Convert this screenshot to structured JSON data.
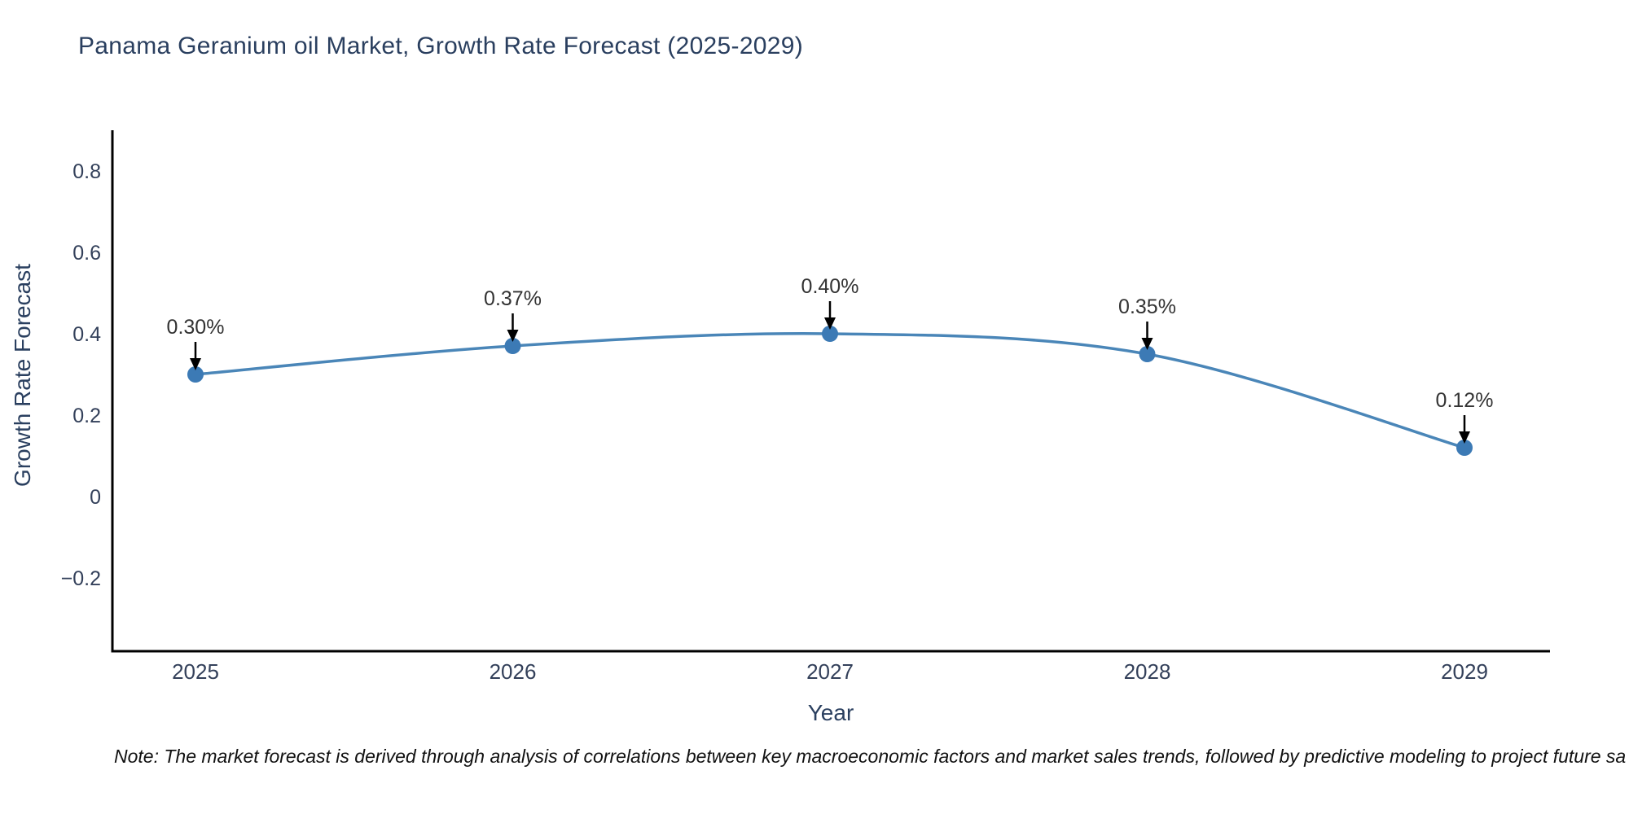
{
  "title": "Panama Geranium oil Market, Growth Rate Forecast (2025-2029)",
  "note": "Note: The market forecast is derived through analysis of correlations between key macroeconomic factors and market sales trends, followed by predictive modeling to project future sa",
  "chart_data": {
    "type": "line",
    "title": "Panama Geranium oil Market, Growth Rate Forecast (2025-2029)",
    "xlabel": "Year",
    "ylabel": "Growth Rate Forecast",
    "x": [
      2025,
      2026,
      2027,
      2028,
      2029
    ],
    "values": [
      0.3,
      0.37,
      0.4,
      0.35,
      0.12
    ],
    "point_labels": [
      "0.30%",
      "0.37%",
      "0.40%",
      "0.35%",
      "0.12%"
    ],
    "yticks": [
      0.8,
      0.6,
      0.4,
      0.2,
      0,
      -0.2
    ],
    "ylim": [
      -0.38,
      0.9
    ],
    "grid": false,
    "legend": "none",
    "line_color": "#4a86b8",
    "marker_color": "#3c7ab5",
    "axis_color": "#000000",
    "tick_text_color": "#33405a",
    "title_text_color": "#2a3f5f",
    "annotation_text_color": "#333333",
    "arrow_color": "#000000"
  }
}
